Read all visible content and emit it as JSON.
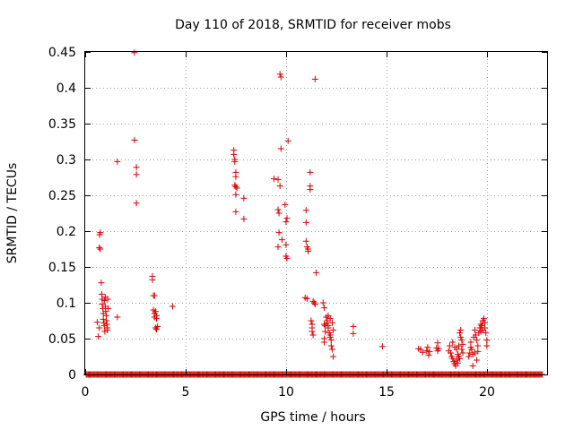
{
  "chart_data": {
    "type": "scatter",
    "title": "Day 110 of 2018, SRMTID for receiver mobs",
    "xlabel": "GPS time / hours",
    "ylabel": "SRMTID / TECUs",
    "xlim": [
      0,
      23
    ],
    "ylim": [
      0,
      0.45
    ],
    "xticks": [
      0,
      5,
      10,
      15,
      20
    ],
    "xtick_labels": [
      "0",
      "5",
      "10",
      "15",
      "20"
    ],
    "yticks": [
      0,
      0.05,
      0.1,
      0.15,
      0.2,
      0.25,
      0.3,
      0.35,
      0.4,
      0.45
    ],
    "ytick_labels": [
      "0",
      "0.05",
      "0.1",
      "0.15",
      "0.2",
      "0.25",
      "0.3",
      "0.35",
      "0.4",
      "0.45"
    ],
    "grid": true,
    "marker": "+",
    "color": "#dd0000",
    "zero_baseline": {
      "x_start": 0.05,
      "x_end": 22.75,
      "step": 0.05,
      "y": 0
    },
    "series": [
      {
        "name": "SRMTID",
        "points": [
          [
            0.6,
            0.073
          ],
          [
            0.65,
            0.053
          ],
          [
            0.7,
            0.065
          ],
          [
            0.72,
            0.195
          ],
          [
            0.75,
            0.198
          ],
          [
            0.7,
            0.177
          ],
          [
            0.75,
            0.175
          ],
          [
            0.8,
            0.128
          ],
          [
            0.82,
            0.112
          ],
          [
            0.85,
            0.105
          ],
          [
            0.85,
            0.098
          ],
          [
            0.88,
            0.092
          ],
          [
            0.9,
            0.085
          ],
          [
            0.9,
            0.077
          ],
          [
            0.93,
            0.072
          ],
          [
            0.95,
            0.068
          ],
          [
            0.95,
            0.103
          ],
          [
            1.0,
            0.108
          ],
          [
            1.0,
            0.095
          ],
          [
            1.02,
            0.088
          ],
          [
            1.05,
            0.082
          ],
          [
            1.05,
            0.075
          ],
          [
            1.08,
            0.07
          ],
          [
            1.1,
            0.065
          ],
          [
            1.1,
            0.062
          ],
          [
            1.12,
            0.105
          ],
          [
            1.15,
            0.092
          ],
          [
            0.98,
            0.06
          ],
          [
            1.6,
            0.08
          ],
          [
            1.6,
            0.297
          ],
          [
            2.45,
            0.449
          ],
          [
            2.45,
            0.327
          ],
          [
            2.55,
            0.289
          ],
          [
            2.55,
            0.279
          ],
          [
            2.55,
            0.239
          ],
          [
            3.35,
            0.137
          ],
          [
            3.35,
            0.132
          ],
          [
            3.4,
            0.11
          ],
          [
            3.45,
            0.11
          ],
          [
            3.4,
            0.09
          ],
          [
            3.45,
            0.085
          ],
          [
            3.45,
            0.08
          ],
          [
            3.5,
            0.088
          ],
          [
            3.55,
            0.082
          ],
          [
            3.55,
            0.078
          ],
          [
            3.5,
            0.065
          ],
          [
            3.55,
            0.063
          ],
          [
            3.6,
            0.067
          ],
          [
            4.35,
            0.095
          ],
          [
            7.4,
            0.313
          ],
          [
            7.4,
            0.307
          ],
          [
            7.45,
            0.3
          ],
          [
            7.45,
            0.297
          ],
          [
            7.5,
            0.282
          ],
          [
            7.5,
            0.276
          ],
          [
            7.45,
            0.264
          ],
          [
            7.5,
            0.262
          ],
          [
            7.55,
            0.26
          ],
          [
            7.5,
            0.251
          ],
          [
            7.5,
            0.227
          ],
          [
            7.9,
            0.246
          ],
          [
            7.9,
            0.217
          ],
          [
            9.4,
            0.273
          ],
          [
            9.6,
            0.272
          ],
          [
            9.6,
            0.23
          ],
          [
            9.65,
            0.225
          ],
          [
            9.65,
            0.198
          ],
          [
            9.6,
            0.178
          ],
          [
            9.7,
            0.263
          ],
          [
            9.75,
            0.315
          ],
          [
            9.7,
            0.419
          ],
          [
            9.75,
            0.415
          ],
          [
            9.8,
            0.188
          ],
          [
            9.95,
            0.237
          ],
          [
            10.0,
            0.213
          ],
          [
            10.05,
            0.218
          ],
          [
            10.0,
            0.181
          ],
          [
            10.0,
            0.165
          ],
          [
            10.05,
            0.162
          ],
          [
            10.1,
            0.326
          ],
          [
            11.0,
            0.229
          ],
          [
            11.0,
            0.212
          ],
          [
            11.0,
            0.186
          ],
          [
            11.05,
            0.178
          ],
          [
            11.1,
            0.175
          ],
          [
            11.1,
            0.172
          ],
          [
            11.2,
            0.282
          ],
          [
            11.2,
            0.263
          ],
          [
            11.2,
            0.258
          ],
          [
            11.45,
            0.412
          ],
          [
            11.5,
            0.142
          ],
          [
            10.95,
            0.107
          ],
          [
            11.05,
            0.106
          ],
          [
            11.25,
            0.075
          ],
          [
            11.3,
            0.07
          ],
          [
            11.3,
            0.065
          ],
          [
            11.3,
            0.06
          ],
          [
            11.35,
            0.102
          ],
          [
            11.4,
            0.1
          ],
          [
            11.45,
            0.098
          ],
          [
            11.35,
            0.055
          ],
          [
            11.85,
            0.1
          ],
          [
            11.9,
            0.093
          ],
          [
            11.9,
            0.07
          ],
          [
            11.95,
            0.068
          ],
          [
            11.95,
            0.06
          ],
          [
            11.9,
            0.05
          ],
          [
            11.9,
            0.045
          ],
          [
            12.0,
            0.08
          ],
          [
            12.05,
            0.075
          ],
          [
            12.05,
            0.072
          ],
          [
            12.1,
            0.068
          ],
          [
            12.1,
            0.065
          ],
          [
            12.15,
            0.058
          ],
          [
            12.2,
            0.055
          ],
          [
            12.2,
            0.052
          ],
          [
            12.25,
            0.048
          ],
          [
            12.25,
            0.04
          ],
          [
            12.3,
            0.035
          ],
          [
            12.35,
            0.025
          ],
          [
            12.1,
            0.082
          ],
          [
            12.2,
            0.078
          ],
          [
            12.3,
            0.072
          ],
          [
            12.35,
            0.062
          ],
          [
            13.35,
            0.067
          ],
          [
            13.35,
            0.057
          ],
          [
            14.8,
            0.039
          ],
          [
            16.6,
            0.036
          ],
          [
            16.7,
            0.035
          ],
          [
            16.8,
            0.031
          ],
          [
            17.0,
            0.033
          ],
          [
            17.05,
            0.038
          ],
          [
            17.1,
            0.027
          ],
          [
            17.15,
            0.032
          ],
          [
            17.5,
            0.037
          ],
          [
            17.55,
            0.044
          ],
          [
            17.6,
            0.036
          ],
          [
            17.55,
            0.033
          ],
          [
            18.1,
            0.033
          ],
          [
            18.15,
            0.04
          ],
          [
            18.2,
            0.03
          ],
          [
            18.25,
            0.025
          ],
          [
            18.3,
            0.045
          ],
          [
            18.3,
            0.022
          ],
          [
            18.35,
            0.018
          ],
          [
            18.4,
            0.015
          ],
          [
            18.45,
            0.012
          ],
          [
            18.5,
            0.02
          ],
          [
            18.5,
            0.035
          ],
          [
            18.55,
            0.028
          ],
          [
            18.6,
            0.025
          ],
          [
            18.6,
            0.04
          ],
          [
            18.65,
            0.058
          ],
          [
            18.7,
            0.052
          ],
          [
            18.7,
            0.062
          ],
          [
            18.75,
            0.048
          ],
          [
            18.75,
            0.035
          ],
          [
            18.8,
            0.042
          ],
          [
            18.4,
            0.038
          ],
          [
            18.55,
            0.016
          ],
          [
            18.65,
            0.022
          ],
          [
            18.8,
            0.03
          ],
          [
            19.1,
            0.025
          ],
          [
            19.15,
            0.03
          ],
          [
            19.2,
            0.038
          ],
          [
            19.2,
            0.045
          ],
          [
            19.25,
            0.035
          ],
          [
            19.3,
            0.028
          ],
          [
            19.3,
            0.012
          ],
          [
            19.35,
            0.052
          ],
          [
            19.4,
            0.062
          ],
          [
            19.45,
            0.055
          ],
          [
            19.5,
            0.048
          ],
          [
            19.5,
            0.02
          ],
          [
            19.55,
            0.032
          ],
          [
            19.55,
            0.04
          ],
          [
            19.6,
            0.058
          ],
          [
            19.65,
            0.065
          ],
          [
            19.7,
            0.07
          ],
          [
            19.7,
            0.06
          ],
          [
            19.75,
            0.068
          ],
          [
            19.8,
            0.075
          ],
          [
            19.85,
            0.078
          ],
          [
            19.8,
            0.062
          ],
          [
            19.9,
            0.072
          ],
          [
            19.9,
            0.065
          ],
          [
            19.95,
            0.058
          ],
          [
            20.0,
            0.048
          ],
          [
            20.0,
            0.04
          ],
          [
            19.4,
            0.03
          ]
        ]
      }
    ]
  }
}
